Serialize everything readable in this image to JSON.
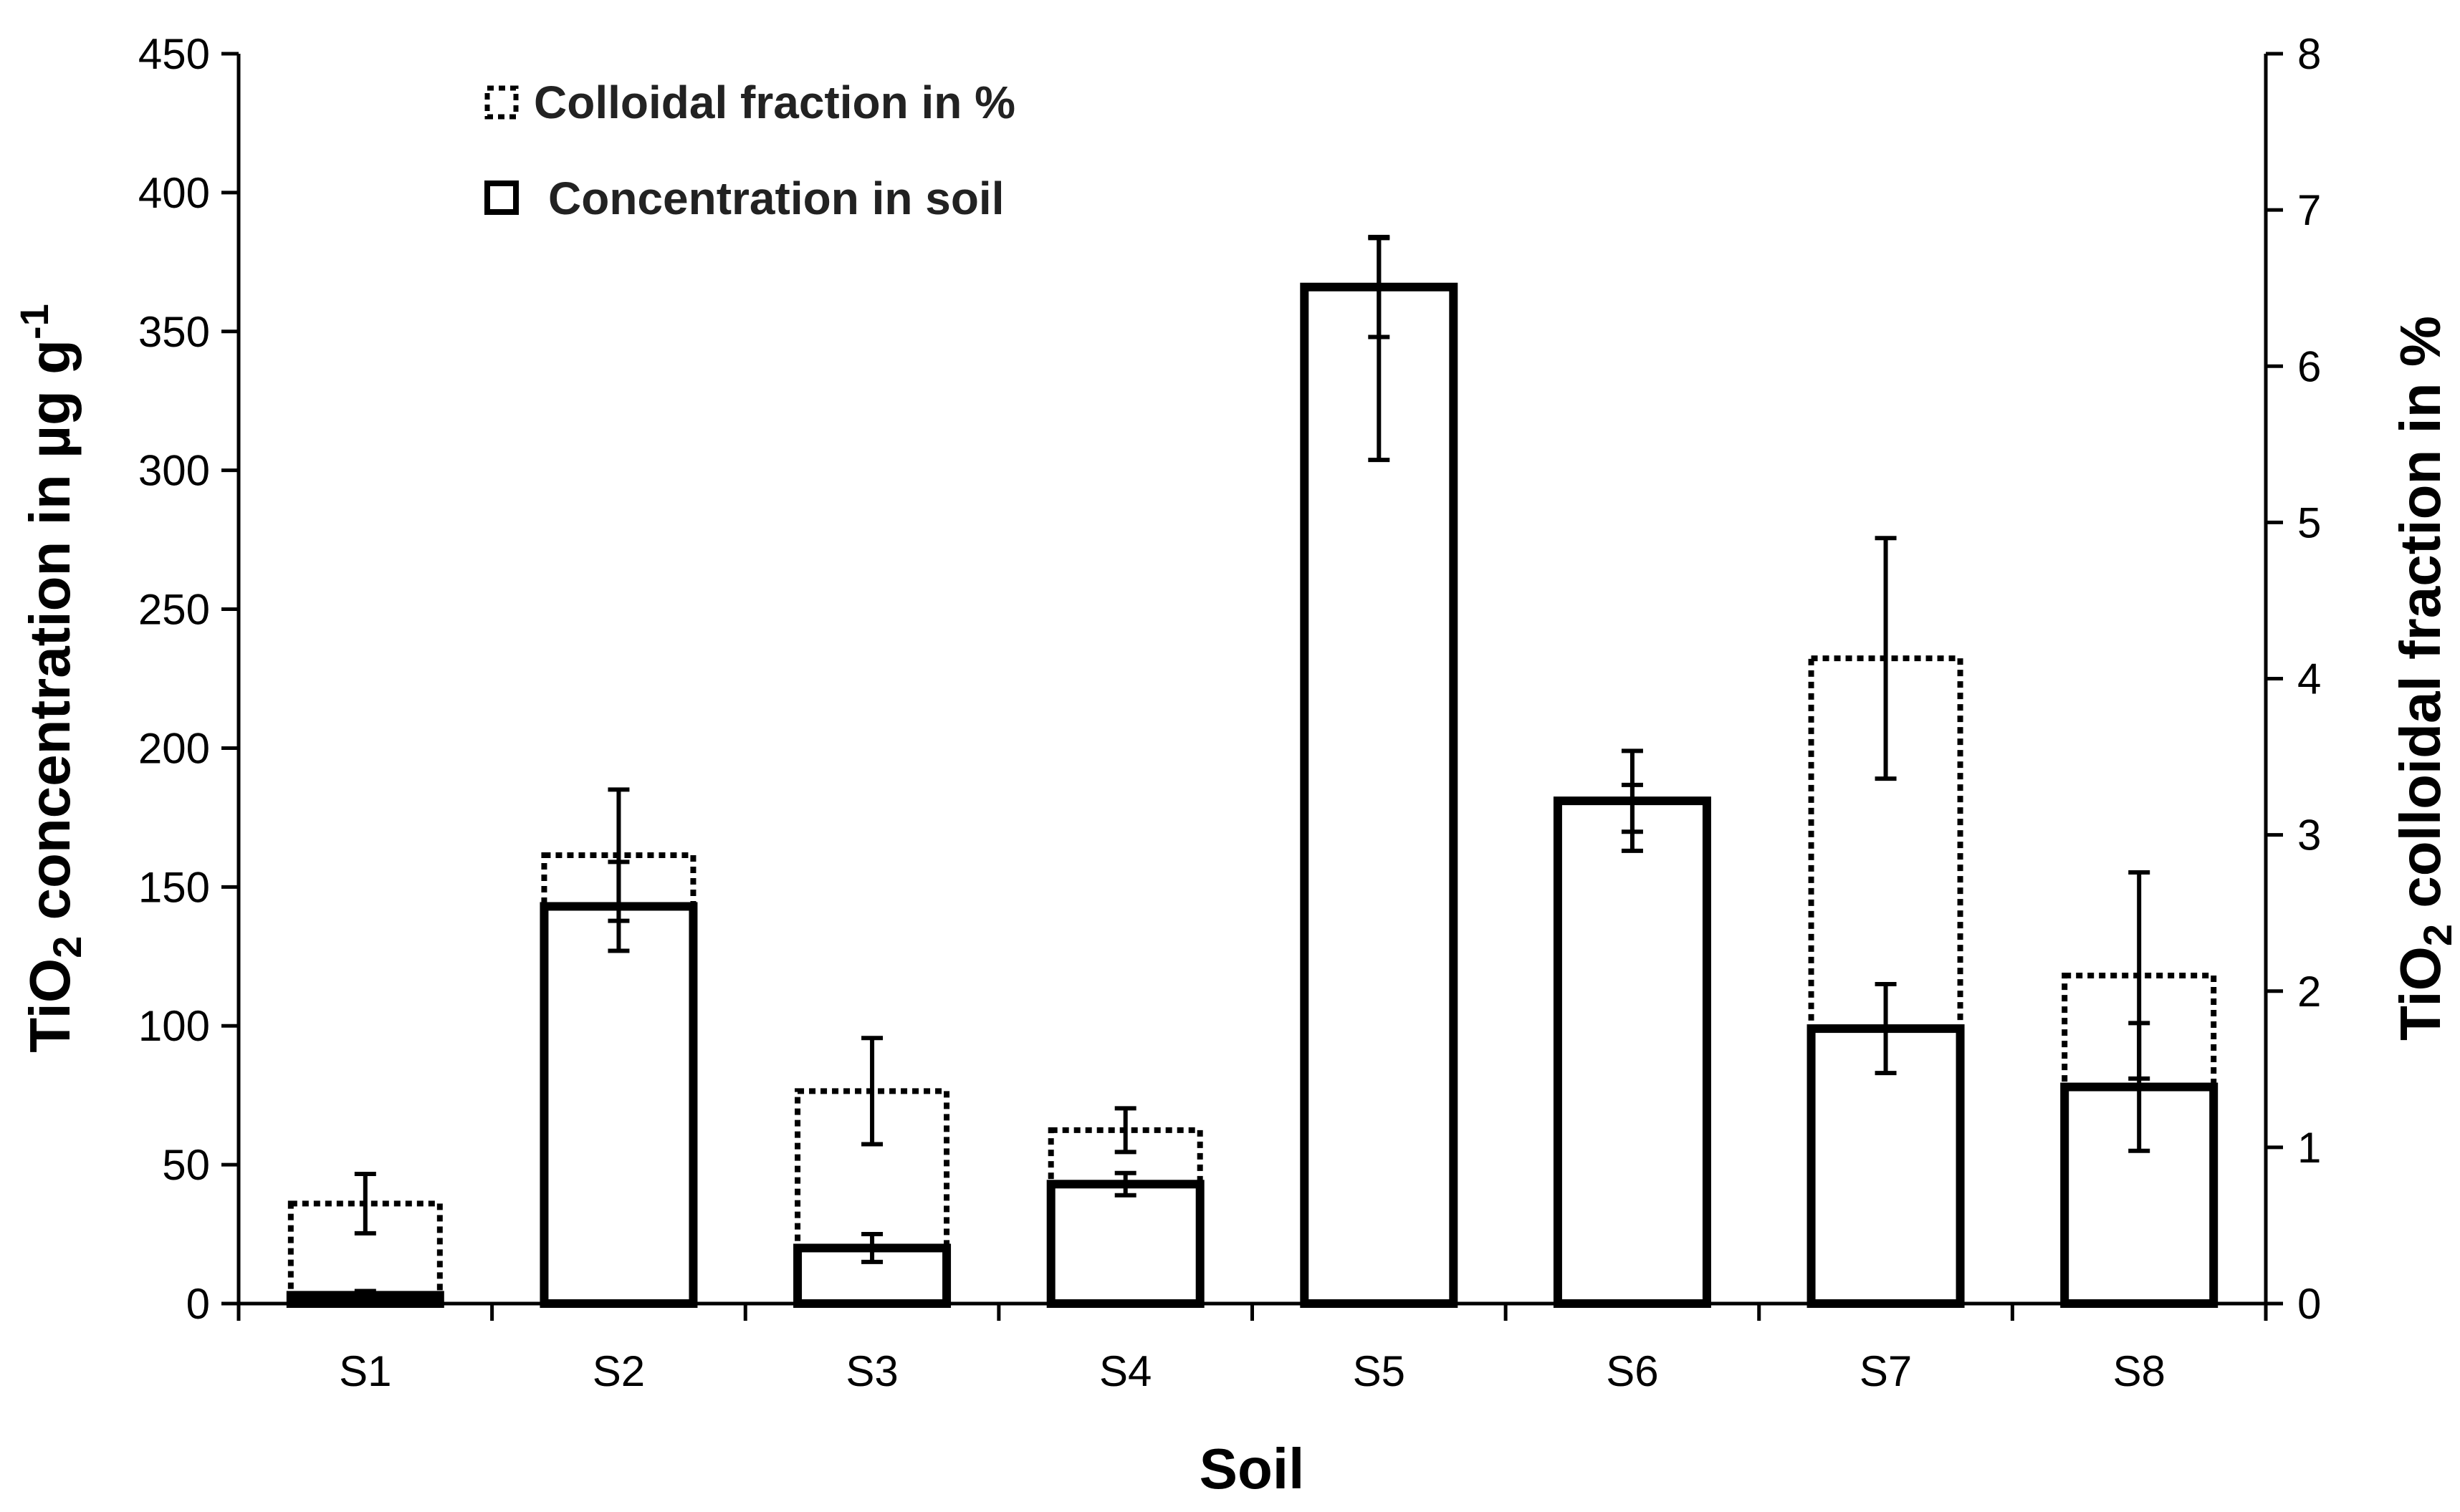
{
  "chart_data": {
    "type": "bar",
    "categories": [
      "S1",
      "S2",
      "S3",
      "S4",
      "S5",
      "S6",
      "S7",
      "S8"
    ],
    "xlabel": "Soil",
    "ylabel_left": {
      "prefix": "TiO",
      "sub": "2",
      "mid": " concentration in µg g",
      "sup": "-1"
    },
    "ylabel_right": {
      "prefix": "TiO",
      "sub": "2",
      "suffix": " colloidal fraction in %"
    },
    "ylim_left": [
      0,
      450
    ],
    "yticks_left": [
      "0",
      "50",
      "100",
      "150",
      "200",
      "250",
      "300",
      "350",
      "400",
      "450"
    ],
    "ylim_right": [
      0,
      8
    ],
    "yticks_right": [
      "0",
      "1",
      "2",
      "3",
      "4",
      "5",
      "6",
      "7",
      "8"
    ],
    "grid": false,
    "legend_position": "top-left",
    "series": [
      {
        "name": "Colloidal fraction in %",
        "style": "dotted",
        "axis": "right",
        "values": [
          0.64,
          2.87,
          1.36,
          1.11,
          6.11,
          3.17,
          4.13,
          2.1
        ],
        "errors": [
          0.19,
          0.42,
          0.34,
          0.14,
          0.71,
          0.15,
          0.77,
          0.66
        ]
      },
      {
        "name": "Concentration in soil",
        "style": "solid",
        "axis": "left",
        "values": [
          3,
          143,
          20,
          43,
          366,
          181,
          99,
          78
        ],
        "errors": [
          1.5,
          16,
          5,
          4,
          18,
          18,
          16,
          23
        ]
      }
    ]
  }
}
